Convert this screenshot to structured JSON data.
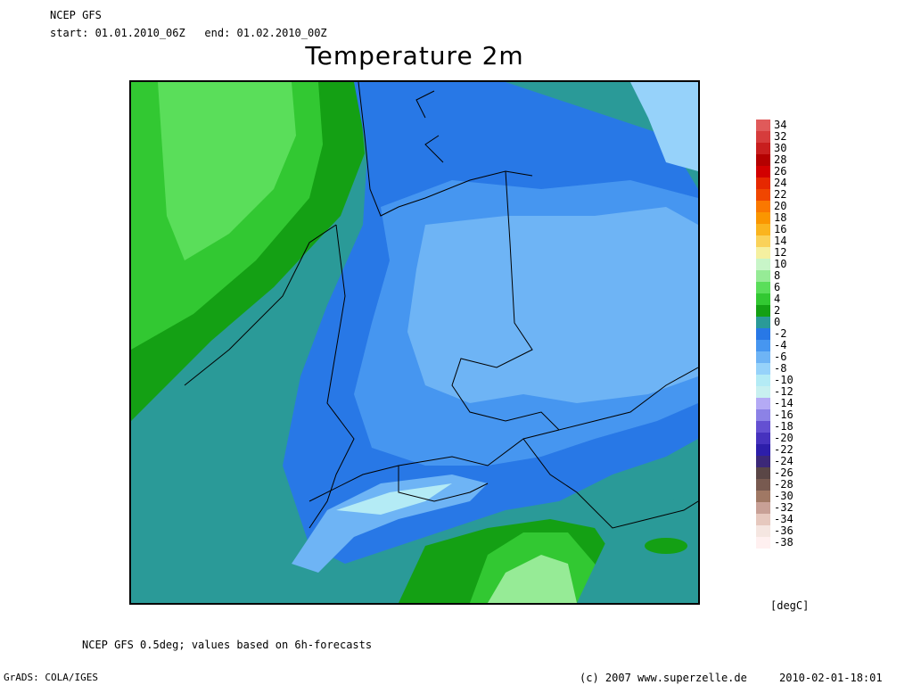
{
  "header": {
    "model": "NCEP GFS",
    "period": "start: 01.01.2010_06Z   end: 01.02.2010_00Z",
    "title": "Temperature 2m"
  },
  "footer": {
    "note": "NCEP GFS 0.5deg; values based on 6h-forecasts",
    "software": "GrADS: COLA/IGES",
    "copyright": "(c) 2007 www.superzelle.de",
    "timestamp": "2010-02-01-18:01"
  },
  "legend": {
    "unit": "[degC]",
    "levels": [
      {
        "label": "34",
        "color": "#e05a5a"
      },
      {
        "label": "32",
        "color": "#d63c3c"
      },
      {
        "label": "30",
        "color": "#c81e1e"
      },
      {
        "label": "28",
        "color": "#b40000"
      },
      {
        "label": "26",
        "color": "#d20000"
      },
      {
        "label": "24",
        "color": "#e62800"
      },
      {
        "label": "22",
        "color": "#f04600"
      },
      {
        "label": "20",
        "color": "#fa7800"
      },
      {
        "label": "18",
        "color": "#fa9600"
      },
      {
        "label": "16",
        "color": "#fab41e"
      },
      {
        "label": "14",
        "color": "#fad25a"
      },
      {
        "label": "12",
        "color": "#f5f0a0"
      },
      {
        "label": "10",
        "color": "#c8f5c8"
      },
      {
        "label": "8",
        "color": "#96eb96"
      },
      {
        "label": "6",
        "color": "#5ade5a"
      },
      {
        "label": "4",
        "color": "#32c832"
      },
      {
        "label": "2",
        "color": "#14a014"
      },
      {
        "label": "0",
        "color": "#2a9a98"
      },
      {
        "label": "-2",
        "color": "#2878e6"
      },
      {
        "label": "-4",
        "color": "#4696f0"
      },
      {
        "label": "-6",
        "color": "#6eb4f5"
      },
      {
        "label": "-8",
        "color": "#96d2fa"
      },
      {
        "label": "-10",
        "color": "#b4ebf5"
      },
      {
        "label": "-12",
        "color": "#c8f0f0"
      },
      {
        "label": "-14",
        "color": "#b4aaf5"
      },
      {
        "label": "-16",
        "color": "#8c82e6"
      },
      {
        "label": "-18",
        "color": "#6450d2"
      },
      {
        "label": "-20",
        "color": "#4632be"
      },
      {
        "label": "-22",
        "color": "#2d1eaa"
      },
      {
        "label": "-24",
        "color": "#3c2878"
      },
      {
        "label": "-26",
        "color": "#5a4646"
      },
      {
        "label": "-28",
        "color": "#785a50"
      },
      {
        "label": "-30",
        "color": "#a07864"
      },
      {
        "label": "-32",
        "color": "#c8a096"
      },
      {
        "label": "-34",
        "color": "#e6c8be"
      },
      {
        "label": "-36",
        "color": "#f5e6e1"
      },
      {
        "label": "-38",
        "color": "#fff0f0"
      }
    ]
  }
}
